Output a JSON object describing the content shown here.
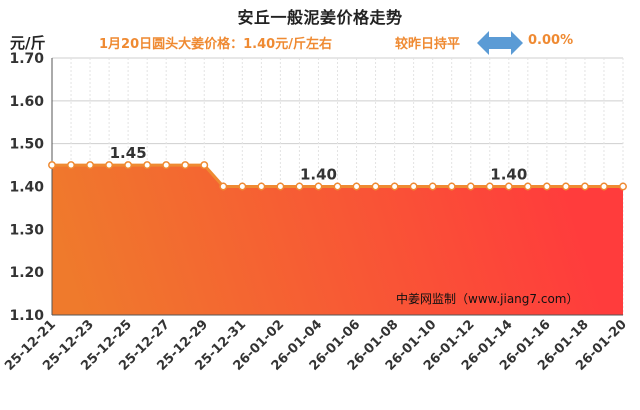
{
  "header": {
    "title": "安丘一般泥姜价格走势",
    "summary": "1月20日圆头大姜价格：1.40元/斤左右",
    "status": "较昨日持平",
    "change": "0.00%"
  },
  "colors": {
    "line": "#ef8a32",
    "fill_top": "#ff3c3c",
    "fill_bottom": "#ef7a2c",
    "arrow": "#5b9bd5",
    "subtitle": "#ef8a32"
  },
  "icons": {
    "status_arrow": "double-arrow-icon"
  },
  "chart_data": {
    "type": "area",
    "title": "安丘一般泥姜价格走势",
    "ylabel": "元/斤",
    "xlabel": "",
    "ylim": [
      1.1,
      1.7
    ],
    "y_ticks": [
      "1.10",
      "1.20",
      "1.30",
      "1.40",
      "1.50",
      "1.60",
      "1.70"
    ],
    "x_tick_labels": [
      "25-12-21",
      "25-12-23",
      "25-12-25",
      "25-12-27",
      "25-12-29",
      "25-12-31",
      "26-01-02",
      "26-01-04",
      "26-01-06",
      "26-01-08",
      "26-01-10",
      "26-01-12",
      "26-01-14",
      "26-01-16",
      "26-01-18",
      "26-01-20"
    ],
    "grid": true,
    "x": [
      "25-12-21",
      "25-12-22",
      "25-12-23",
      "25-12-24",
      "25-12-25",
      "25-12-26",
      "25-12-27",
      "25-12-28",
      "25-12-29",
      "25-12-30",
      "25-12-31",
      "26-01-01",
      "26-01-02",
      "26-01-03",
      "26-01-04",
      "26-01-05",
      "26-01-06",
      "26-01-07",
      "26-01-08",
      "26-01-09",
      "26-01-10",
      "26-01-11",
      "26-01-12",
      "26-01-13",
      "26-01-14",
      "26-01-15",
      "26-01-16",
      "26-01-17",
      "26-01-18",
      "26-01-19",
      "26-01-20"
    ],
    "values": [
      1.45,
      1.45,
      1.45,
      1.45,
      1.45,
      1.45,
      1.45,
      1.45,
      1.45,
      1.4,
      1.4,
      1.4,
      1.4,
      1.4,
      1.4,
      1.4,
      1.4,
      1.4,
      1.4,
      1.4,
      1.4,
      1.4,
      1.4,
      1.4,
      1.4,
      1.4,
      1.4,
      1.4,
      1.4,
      1.4,
      1.4
    ],
    "data_labels": [
      {
        "x": "25-12-25",
        "text": "1.45"
      },
      {
        "x": "26-01-04",
        "text": "1.40"
      },
      {
        "x": "26-01-14",
        "text": "1.40"
      }
    ],
    "watermark": "中姜网监制（www.jiang7.com）"
  }
}
